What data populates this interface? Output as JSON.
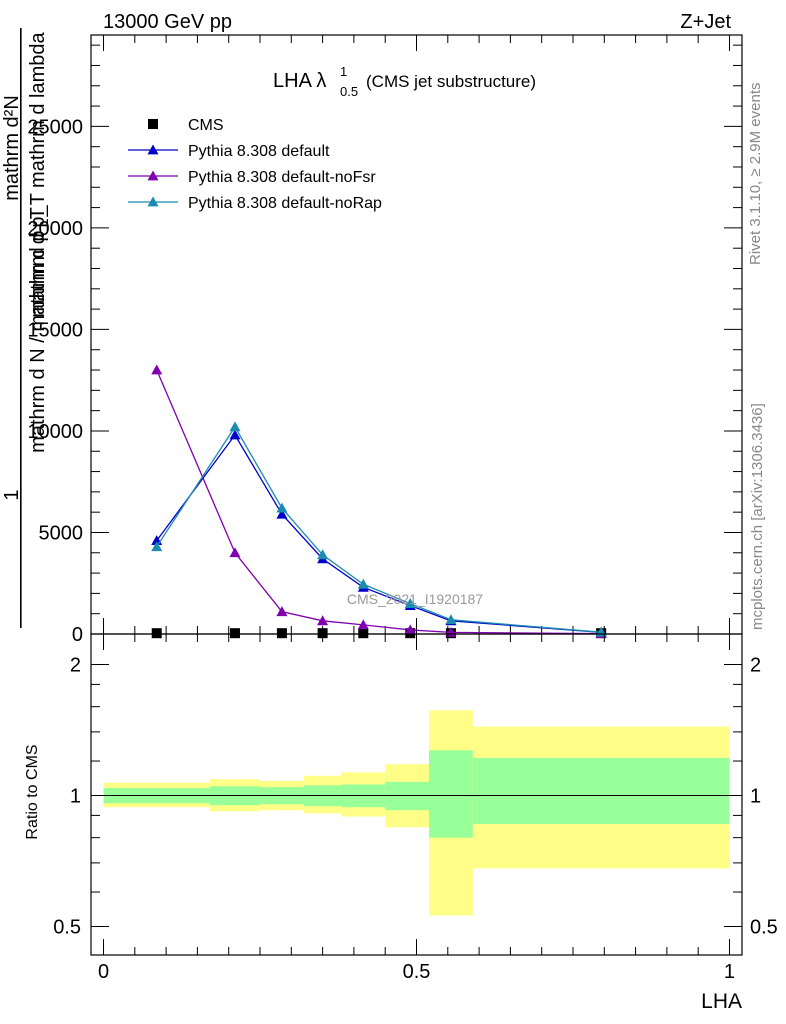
{
  "header": {
    "left": "13000 GeV pp",
    "right": "Z+Jet"
  },
  "side_labels": {
    "rivet": "Rivet 3.1.10, ≥ 2.9M events",
    "mcplots": "mcplots.cern.ch [arXiv:1306.3436]"
  },
  "watermark": "CMS_2021_I1920187",
  "colors": {
    "cms": "#000000",
    "default": "#0000cc",
    "noFsr": "#8000b0",
    "noRap": "#1a8caf",
    "band_inner": "#99ff99",
    "band_outer": "#ffff88"
  },
  "chart_data": [
    {
      "type": "line",
      "title": "LHA λ",
      "title_sup": "1",
      "title_sub": "0.5",
      "subtitle": "(CMS jet substructure)",
      "ylabel_numerator": "1",
      "ylabel_numerator_overlap": "mathrm d²N",
      "ylabel_numerator_overlap2": "mathrm d p_T mathrm d lambda",
      "ylabel_denominator": "mathrm d N / mathrm d p_T",
      "ylabel_extra": "mathrm d p_T mathrm d lambda",
      "ylim": [
        0,
        29500
      ],
      "xlim": [
        -0.02,
        1.02
      ],
      "yticks": [
        0,
        5000,
        10000,
        15000,
        20000,
        25000
      ],
      "ytick_labels": [
        "0",
        "5000",
        "10000",
        "15000",
        "20000",
        "25000"
      ],
      "legend": [
        "CMS",
        "Pythia 8.308 default",
        "Pythia 8.308 default-noFsr",
        "Pythia 8.308 default-noRap"
      ],
      "legend_placement": "top-left",
      "series": [
        {
          "name": "CMS",
          "x": [
            0.085,
            0.21,
            0.285,
            0.35,
            0.415,
            0.49,
            0.555,
            0.795
          ],
          "y": [
            40,
            40,
            40,
            40,
            40,
            40,
            40,
            40
          ],
          "marker": "square"
        },
        {
          "name": "Pythia 8.308 default",
          "x": [
            0.085,
            0.21,
            0.285,
            0.35,
            0.415,
            0.49,
            0.555,
            0.795
          ],
          "y": [
            4600,
            9800,
            5900,
            3700,
            2300,
            1400,
            650,
            80
          ],
          "marker": "triangle"
        },
        {
          "name": "Pythia 8.308 default-noFsr",
          "x": [
            0.085,
            0.21,
            0.285,
            0.35,
            0.415,
            0.49,
            0.555,
            0.795
          ],
          "y": [
            13000,
            4000,
            1100,
            650,
            450,
            200,
            80,
            20
          ],
          "marker": "triangle"
        },
        {
          "name": "Pythia 8.308 default-noRap",
          "x": [
            0.085,
            0.21,
            0.285,
            0.35,
            0.415,
            0.49,
            0.555,
            0.795
          ],
          "y": [
            4300,
            10200,
            6200,
            3900,
            2450,
            1500,
            700,
            90
          ],
          "marker": "triangle"
        }
      ]
    },
    {
      "type": "area",
      "ylabel": "Ratio to CMS",
      "xlabel": "LHA",
      "ylog": true,
      "ylim": [
        0.43,
        2.35
      ],
      "xlim": [
        -0.02,
        1.02
      ],
      "yticks": [
        0.5,
        1,
        2
      ],
      "ytick_labels": [
        "0.5",
        "1",
        "2"
      ],
      "xticks": [
        0,
        0.5,
        1
      ],
      "xtick_labels": [
        "0",
        "0.5",
        "1"
      ],
      "reference_line": 1,
      "bins": [
        {
          "lo": 0.0,
          "hi": 0.17,
          "inner": [
            0.96,
            1.04
          ],
          "outer": [
            0.94,
            1.07
          ]
        },
        {
          "lo": 0.17,
          "hi": 0.25,
          "inner": [
            0.95,
            1.05
          ],
          "outer": [
            0.92,
            1.09
          ]
        },
        {
          "lo": 0.25,
          "hi": 0.32,
          "inner": [
            0.955,
            1.045
          ],
          "outer": [
            0.925,
            1.08
          ]
        },
        {
          "lo": 0.32,
          "hi": 0.38,
          "inner": [
            0.945,
            1.055
          ],
          "outer": [
            0.91,
            1.11
          ]
        },
        {
          "lo": 0.38,
          "hi": 0.45,
          "inner": [
            0.94,
            1.06
          ],
          "outer": [
            0.895,
            1.13
          ]
        },
        {
          "lo": 0.45,
          "hi": 0.52,
          "inner": [
            0.925,
            1.075
          ],
          "outer": [
            0.845,
            1.18
          ]
        },
        {
          "lo": 0.52,
          "hi": 0.59,
          "inner": [
            0.8,
            1.27
          ],
          "outer": [
            0.53,
            1.57
          ]
        },
        {
          "lo": 0.59,
          "hi": 1.0,
          "inner": [
            0.86,
            1.22
          ],
          "outer": [
            0.68,
            1.44
          ]
        }
      ]
    }
  ]
}
